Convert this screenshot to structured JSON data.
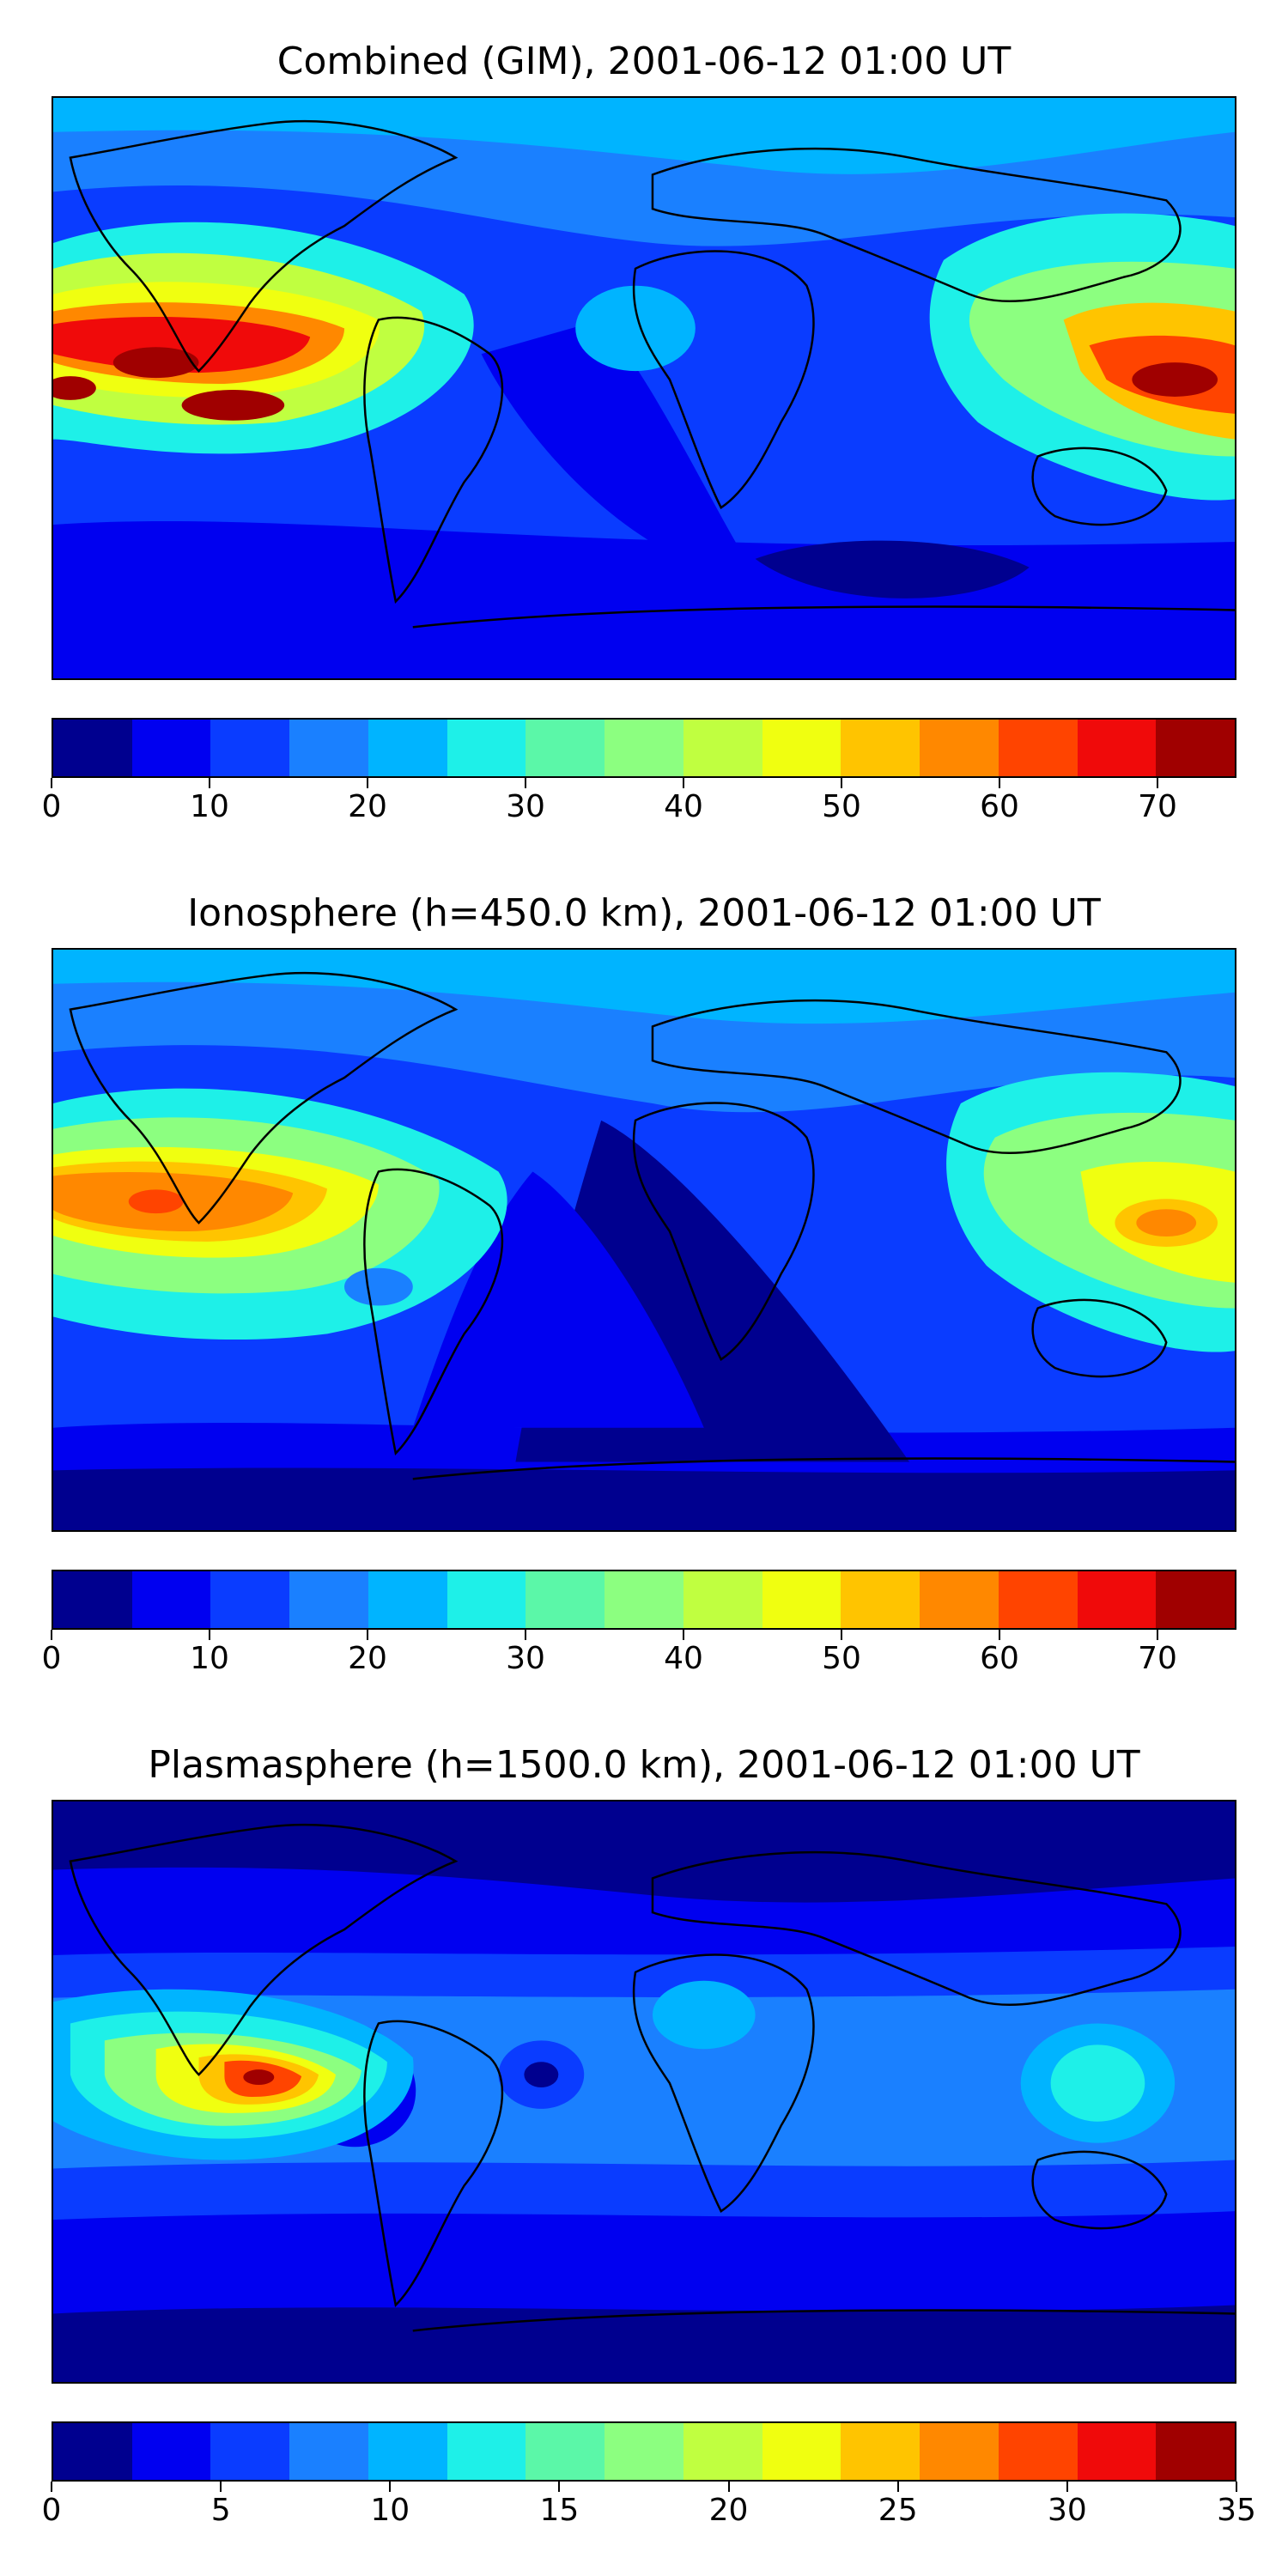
{
  "panels": [
    {
      "title": "Combined (GIM), 2001-06-12 01:00 UT",
      "colorbar": {
        "ticks": [
          "0",
          "10",
          "20",
          "30",
          "40",
          "50",
          "60",
          "70"
        ],
        "tick_values": [
          0,
          10,
          20,
          30,
          40,
          50,
          60,
          70
        ],
        "min": 0,
        "max": 75
      }
    },
    {
      "title": "Ionosphere  (h=450.0 km), 2001-06-12 01:00 UT",
      "colorbar": {
        "ticks": [
          "0",
          "10",
          "20",
          "30",
          "40",
          "50",
          "60",
          "70"
        ],
        "tick_values": [
          0,
          10,
          20,
          30,
          40,
          50,
          60,
          70
        ],
        "min": 0,
        "max": 75
      }
    },
    {
      "title": "Plasmasphere (h=1500.0 km), 2001-06-12 01:00 UT",
      "colorbar": {
        "ticks": [
          "0",
          "5",
          "10",
          "15",
          "20",
          "25",
          "30",
          "35"
        ],
        "tick_values": [
          0,
          5,
          10,
          15,
          20,
          25,
          30,
          35
        ],
        "min": 0,
        "max": 35
      }
    }
  ],
  "colormap": [
    "#00008f",
    "#0000f0",
    "#0a3cff",
    "#1a80ff",
    "#00b4ff",
    "#1ef0e8",
    "#5bf7a8",
    "#8cff80",
    "#c0ff40",
    "#f0ff10",
    "#ffc400",
    "#ff8800",
    "#ff4400",
    "#f00a0a",
    "#a00000"
  ]
}
